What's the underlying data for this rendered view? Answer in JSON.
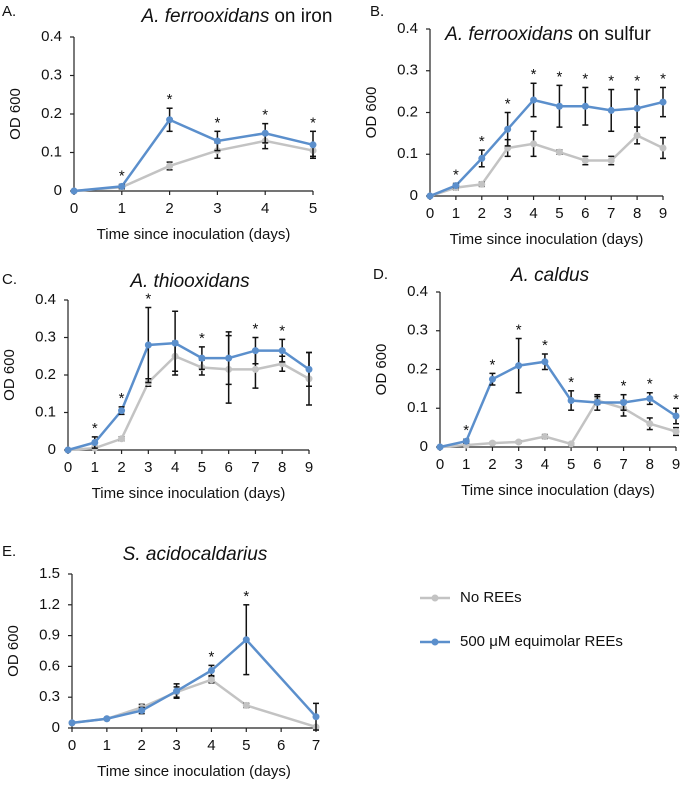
{
  "chart_data": [
    {
      "type": "line",
      "panel": "A.",
      "title": [
        {
          "text": "A. ferrooxidans",
          "italic": true
        },
        {
          "text": "on iron",
          "italic": false
        }
      ],
      "xlabel": "Time since inoculation (days)",
      "ylabel": "OD 600",
      "x": [
        0,
        1,
        2,
        3,
        4,
        5
      ],
      "xlim": [
        0,
        5
      ],
      "xticks": [
        0,
        1,
        2,
        3,
        4,
        5
      ],
      "ylim": [
        0,
        0.4
      ],
      "yticks": [
        0,
        0.1,
        0.2,
        0.3,
        0.4
      ],
      "series": [
        {
          "color": "#c3c3c3",
          "values": [
            0,
            0.01,
            0.065,
            0.105,
            0.13,
            0.105
          ],
          "errors": [
            0,
            0.005,
            0.01,
            0.02,
            0.02,
            0.015
          ]
        },
        {
          "color": "#5b8fcc",
          "values": [
            0,
            0.012,
            0.185,
            0.13,
            0.15,
            0.12
          ],
          "errors": [
            0,
            0.005,
            0.03,
            0.025,
            0.025,
            0.035
          ]
        }
      ],
      "star_label": "*",
      "stars": [
        1,
        2,
        3,
        4,
        5
      ]
    },
    {
      "type": "line",
      "panel": "B.",
      "title": [
        {
          "text": "A. ferrooxidans",
          "italic": true
        },
        {
          "text": "on sulfur",
          "italic": false
        }
      ],
      "xlabel": "Time since inoculation (days)",
      "ylabel": "OD 600",
      "x": [
        0,
        1,
        2,
        3,
        4,
        5,
        6,
        7,
        8,
        9
      ],
      "xlim": [
        0,
        9
      ],
      "xticks": [
        0,
        1,
        2,
        3,
        4,
        5,
        6,
        7,
        8,
        9
      ],
      "ylim": [
        0,
        0.4
      ],
      "yticks": [
        0,
        0.1,
        0.2,
        0.3,
        0.4
      ],
      "series": [
        {
          "color": "#c3c3c3",
          "values": [
            0,
            0.02,
            0.028,
            0.115,
            0.125,
            0.105,
            0.085,
            0.085,
            0.145,
            0.115
          ],
          "errors": [
            0,
            0.005,
            0.005,
            0.02,
            0.03,
            0.005,
            0.01,
            0.01,
            0.02,
            0.025
          ]
        },
        {
          "color": "#5b8fcc",
          "values": [
            0,
            0.025,
            0.09,
            0.16,
            0.23,
            0.215,
            0.215,
            0.205,
            0.21,
            0.225
          ],
          "errors": [
            0,
            0.005,
            0.02,
            0.04,
            0.04,
            0.05,
            0.045,
            0.05,
            0.045,
            0.035
          ]
        }
      ],
      "star_label": "*",
      "stars": [
        1,
        2,
        3,
        4,
        5,
        6,
        7,
        8,
        9
      ]
    },
    {
      "type": "line",
      "panel": "C.",
      "title": [
        {
          "text": "A. thiooxidans",
          "italic": true
        }
      ],
      "xlabel": "Time since inoculation (days)",
      "ylabel": "OD 600",
      "x": [
        0,
        1,
        2,
        3,
        4,
        5,
        6,
        7,
        8,
        9
      ],
      "xlim": [
        0,
        9
      ],
      "xticks": [
        0,
        1,
        2,
        3,
        4,
        5,
        6,
        7,
        8,
        9
      ],
      "ylim": [
        0,
        0.4
      ],
      "yticks": [
        0,
        0.1,
        0.2,
        0.3,
        0.4
      ],
      "series": [
        {
          "color": "#c3c3c3",
          "values": [
            0,
            0.005,
            0.03,
            0.18,
            0.25,
            0.22,
            0.215,
            0.215,
            0.23,
            0.19
          ],
          "errors": [
            0,
            0.005,
            0.005,
            0.01,
            0.04,
            0.02,
            0.09,
            0.05,
            0.02,
            0.07
          ]
        },
        {
          "color": "#5b8fcc",
          "values": [
            0,
            0.02,
            0.105,
            0.28,
            0.285,
            0.245,
            0.245,
            0.265,
            0.265,
            0.215
          ],
          "errors": [
            0,
            0.015,
            0.01,
            0.1,
            0.085,
            0.03,
            0.07,
            0.035,
            0.03,
            0.045
          ]
        }
      ],
      "star_label": "*",
      "stars": [
        1,
        2,
        3,
        5,
        7,
        8
      ]
    },
    {
      "type": "line",
      "panel": "D.",
      "title": [
        {
          "text": "A. caldus",
          "italic": true
        }
      ],
      "xlabel": "Time since inoculation (days)",
      "ylabel": "OD 600",
      "x": [
        0,
        1,
        2,
        3,
        4,
        5,
        6,
        7,
        8,
        9
      ],
      "xlim": [
        0,
        9
      ],
      "xticks": [
        0,
        1,
        2,
        3,
        4,
        5,
        6,
        7,
        8,
        9
      ],
      "ylim": [
        0,
        0.4
      ],
      "yticks": [
        0,
        0.1,
        0.2,
        0.3,
        0.4
      ],
      "series": [
        {
          "color": "#c3c3c3",
          "values": [
            0,
            0.005,
            0.01,
            0.013,
            0.027,
            0.008,
            0.12,
            0.1,
            0.06,
            0.04
          ],
          "errors": [
            0,
            0.002,
            0.003,
            0.003,
            0.005,
            0.003,
            0.01,
            0.02,
            0.015,
            0.01
          ]
        },
        {
          "color": "#5b8fcc",
          "values": [
            0,
            0.015,
            0.175,
            0.21,
            0.22,
            0.12,
            0.115,
            0.115,
            0.125,
            0.08
          ],
          "errors": [
            0,
            0.005,
            0.015,
            0.07,
            0.02,
            0.025,
            0.02,
            0.02,
            0.015,
            0.02
          ]
        }
      ],
      "star_label": "*",
      "stars": [
        1,
        2,
        3,
        4,
        5,
        7,
        8,
        9
      ]
    },
    {
      "type": "line",
      "panel": "E.",
      "title": [
        {
          "text": "S. acidocaldarius",
          "italic": true
        }
      ],
      "xlabel": "Time since inoculation (days)",
      "ylabel": "OD 600",
      "x": [
        0,
        1,
        2,
        3,
        4,
        5,
        7
      ],
      "xlim": [
        0,
        7
      ],
      "xticks": [
        0,
        1,
        2,
        3,
        4,
        5,
        6,
        7
      ],
      "ylim": [
        0,
        1.5
      ],
      "yticks": [
        0,
        0.3,
        0.6,
        0.9,
        1.2,
        1.5
      ],
      "series": [
        {
          "name": "No REEs",
          "color": "#c3c3c3",
          "values": [
            0.05,
            0.09,
            0.2,
            0.35,
            0.47,
            0.22,
            0.01
          ],
          "errors": [
            0.01,
            0.01,
            0.03,
            0.05,
            0.03,
            0.02,
            0.01
          ]
        },
        {
          "name": "500 μM equimolar REEs",
          "color": "#5b8fcc",
          "values": [
            0.05,
            0.09,
            0.17,
            0.36,
            0.56,
            0.86,
            0.11
          ],
          "errors": [
            0.01,
            0.01,
            0.03,
            0.07,
            0.05,
            0.34,
            0.13
          ]
        }
      ],
      "star_label": "*",
      "stars": [
        4,
        5
      ]
    }
  ]
}
